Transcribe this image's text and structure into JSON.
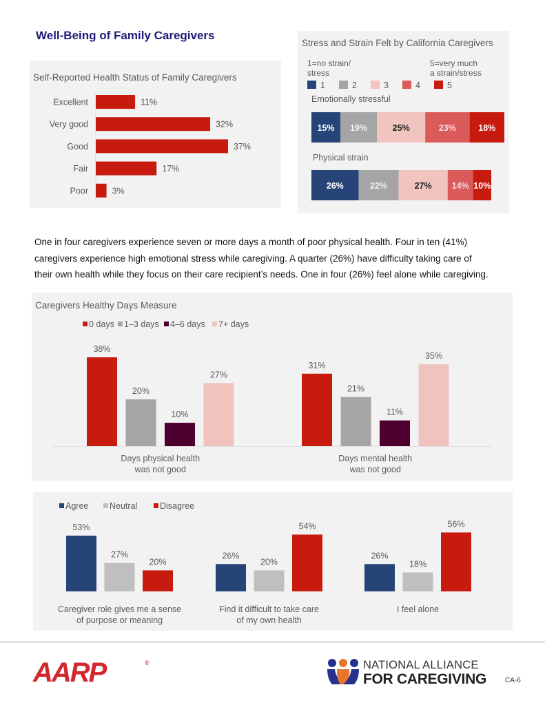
{
  "page": {
    "title": "Well-Being of Family Caregivers",
    "body_text": [
      "One in four caregivers experience seven or more days a month of poor physical health. Four in ten (41%)",
      "caregivers experience high emotional stress while caregiving. A quarter (26%) have difficulty taking care of",
      "their own health while they focus on their care recipient’s needs. One in four (26%) feel alone while caregiving."
    ],
    "page_number": "CA-6"
  },
  "footer": {
    "aarp_logo_text": "AARP",
    "aarp_registered": "®",
    "nac_line1": "NATIONAL ALLIANCE",
    "nac_line2": "FOR CAREGIVING",
    "nac_icon_colors": [
      "#25318a",
      "#e8772e",
      "#25318a"
    ]
  },
  "chart_data": [
    {
      "id": "health-status",
      "type": "bar",
      "orientation": "horizontal",
      "title": "Self-Reported Health Status of Family Caregivers",
      "categories": [
        "Excellent",
        "Very good",
        "Good",
        "Fair",
        "Poor"
      ],
      "values": [
        11,
        32,
        37,
        17,
        3
      ],
      "labels": [
        "11%",
        "32%",
        "37%",
        "17%",
        "3%"
      ],
      "unit": "%",
      "color": "#c81b0f",
      "xlim": [
        0,
        40
      ],
      "grid": false
    },
    {
      "id": "stress-strain",
      "type": "bar",
      "orientation": "horizontal-stacked",
      "title": "Stress and Strain Felt by California Caregivers",
      "scale_low_label": [
        "1=no strain/",
        "stress"
      ],
      "scale_high_label": [
        "5=very much",
        "a strain/stress"
      ],
      "legend": [
        {
          "name": "1",
          "color": "#264478"
        },
        {
          "name": "2",
          "color": "#a5a5a5"
        },
        {
          "name": "3",
          "color": "#f2c4c0"
        },
        {
          "name": "4",
          "color": "#db5b5b"
        },
        {
          "name": "5",
          "color": "#c81b0f"
        }
      ],
      "legend_position": "top",
      "categories": [
        "Emotionally stressful",
        "Physical strain"
      ],
      "series": [
        {
          "name": "1",
          "values": [
            15,
            26
          ],
          "label_color": "#ffffff"
        },
        {
          "name": "2",
          "values": [
            19,
            22
          ],
          "label_color": "#f2f2f2"
        },
        {
          "name": "3",
          "values": [
            25,
            27
          ],
          "label_color": "#222222"
        },
        {
          "name": "4",
          "values": [
            23,
            14
          ],
          "label_color": "#f7dede"
        },
        {
          "name": "5",
          "values": [
            18,
            10
          ],
          "label_color": "#ffffff"
        }
      ]
    },
    {
      "id": "healthy-days",
      "type": "bar",
      "orientation": "vertical-grouped",
      "title": "Caregivers Healthy Days Measure",
      "categories": [
        [
          "Days physical health",
          "was not good"
        ],
        [
          "Days mental health",
          "was not good"
        ]
      ],
      "legend_position": "top",
      "series": [
        {
          "name": "0 days",
          "color": "#c81b0f",
          "values": [
            38,
            31
          ]
        },
        {
          "name": "1–3 days",
          "color": "#a5a5a5",
          "values": [
            20,
            21
          ]
        },
        {
          "name": "4–6 days",
          "color": "#4d0030",
          "values": [
            10,
            11
          ]
        },
        {
          "name": "7+ days",
          "color": "#f0c3bf",
          "values": [
            27,
            35
          ]
        }
      ],
      "ylim": [
        0,
        40
      ],
      "grid": false
    },
    {
      "id": "caregiver-attitudes",
      "type": "bar",
      "orientation": "vertical-grouped",
      "title": "",
      "categories": [
        [
          "Caregiver role gives me a sense",
          "of purpose or meaning"
        ],
        [
          "Find it difficult to take care",
          "of my own health"
        ],
        [
          "I feel alone"
        ]
      ],
      "legend_position": "top-left",
      "series": [
        {
          "name": "Agree",
          "color": "#264478",
          "values": [
            53,
            26,
            26
          ]
        },
        {
          "name": "Neutral",
          "color": "#bfbfbf",
          "values": [
            27,
            20,
            18
          ]
        },
        {
          "name": "Disagree",
          "color": "#c81b0f",
          "values": [
            20,
            54,
            56
          ]
        }
      ],
      "ylim": [
        0,
        60
      ],
      "grid": false
    }
  ]
}
